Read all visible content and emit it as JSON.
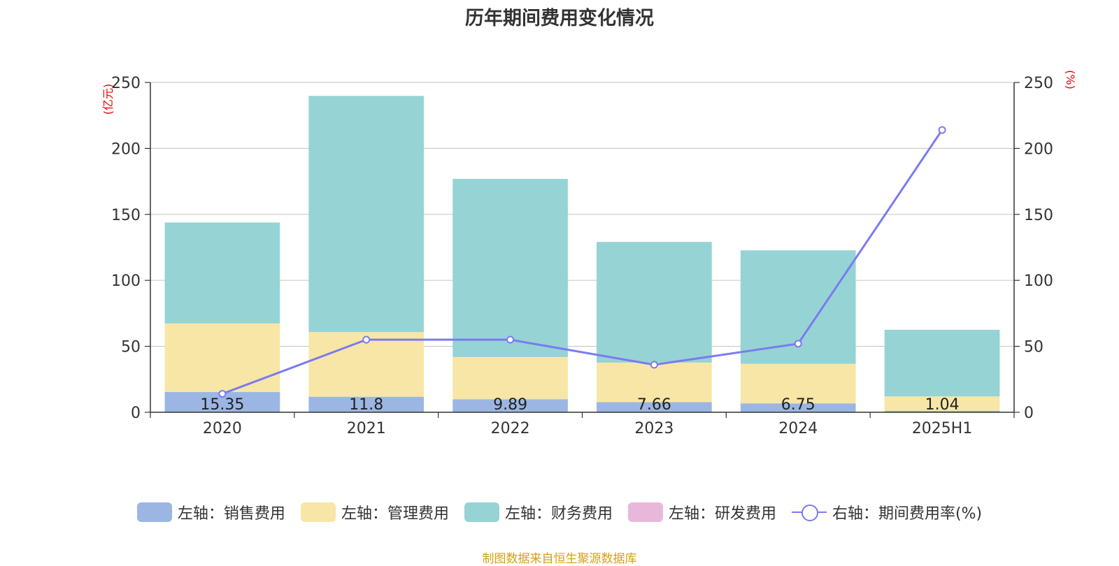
{
  "title": "历年期间费用变化情况",
  "footer": "制图数据来自恒生聚源数据库",
  "colors": {
    "sales": "#9bb6e2",
    "admin": "#f7e6a6",
    "finance": "#96d3d4",
    "rnd": "#e8b8da",
    "rate": "#7b7bf0",
    "axis_unit": "#e60000",
    "grid": "#cccccc",
    "axis": "#333333"
  },
  "chart_data": {
    "type": "bar",
    "stacked": true,
    "categories": [
      "2020",
      "2021",
      "2022",
      "2023",
      "2024",
      "2025H1"
    ],
    "y_left": {
      "unit": "(亿元)",
      "ylim": [
        0,
        250
      ],
      "ticks": [
        0,
        50,
        100,
        150,
        200,
        250
      ]
    },
    "y_right": {
      "unit": "(%)",
      "ylim": [
        0,
        250
      ],
      "ticks": [
        0,
        50,
        100,
        150,
        200,
        250
      ]
    },
    "series": [
      {
        "name": "左轴：销售费用",
        "axis": "left",
        "type": "bar",
        "values": [
          15.35,
          11.8,
          9.89,
          7.66,
          6.75,
          1.04
        ],
        "show_labels": true
      },
      {
        "name": "左轴：管理费用",
        "axis": "left",
        "type": "bar",
        "values": [
          52,
          49,
          32,
          30,
          30,
          11
        ]
      },
      {
        "name": "左轴：财务费用",
        "axis": "left",
        "type": "bar",
        "values": [
          76.5,
          179,
          135,
          91.5,
          86,
          50.5
        ]
      },
      {
        "name": "左轴：研发费用",
        "axis": "left",
        "type": "bar",
        "values": [
          0,
          0,
          0,
          0,
          0,
          0
        ]
      },
      {
        "name": "右轴：期间费用率(%)",
        "axis": "right",
        "type": "line",
        "values": [
          14,
          55,
          55,
          36,
          52,
          214
        ]
      }
    ],
    "grid": true,
    "legend_position": "bottom"
  }
}
